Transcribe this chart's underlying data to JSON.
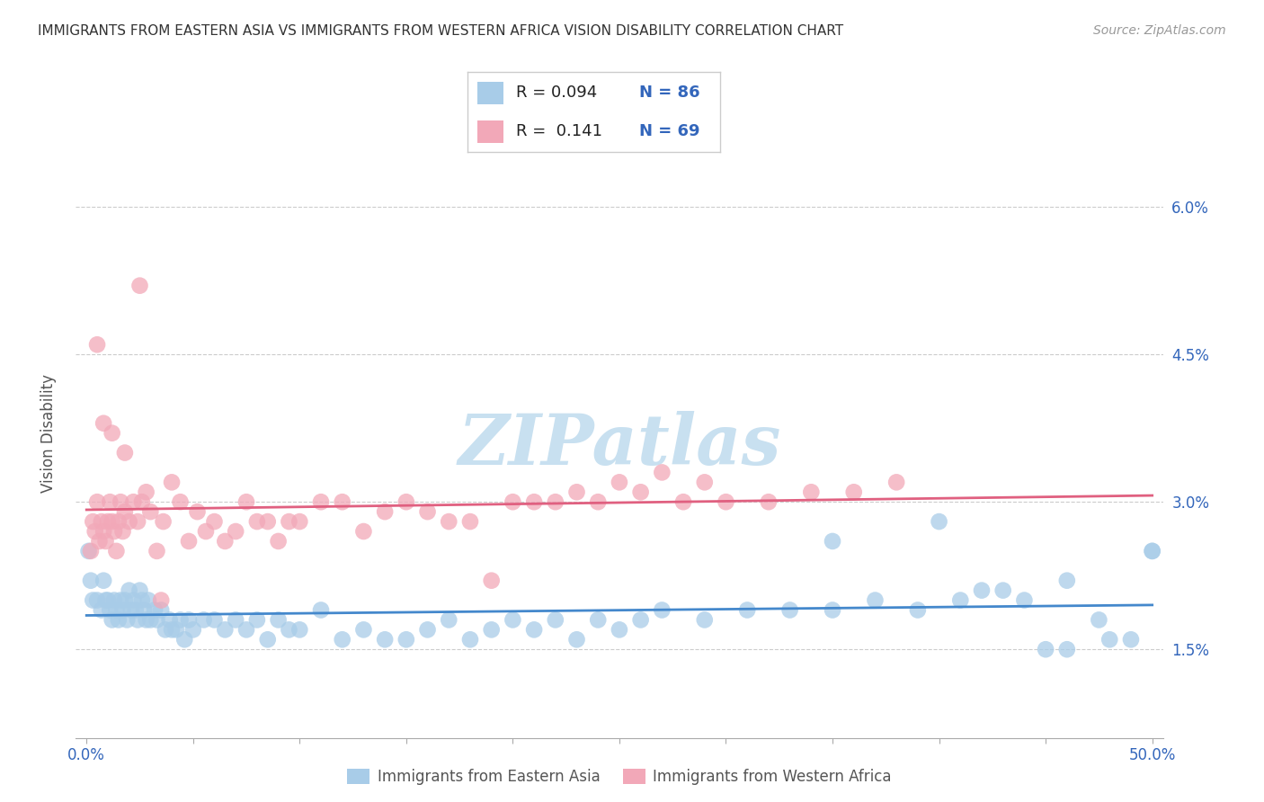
{
  "title": "IMMIGRANTS FROM EASTERN ASIA VS IMMIGRANTS FROM WESTERN AFRICA VISION DISABILITY CORRELATION CHART",
  "source": "Source: ZipAtlas.com",
  "ylabel": "Vision Disability",
  "ytick_vals": [
    0.015,
    0.03,
    0.045,
    0.06
  ],
  "ytick_labels": [
    "1.5%",
    "3.0%",
    "4.5%",
    "6.0%"
  ],
  "xlim": [
    -0.005,
    0.505
  ],
  "ylim": [
    0.006,
    0.068
  ],
  "xtick_positions": [
    0.0,
    0.05,
    0.1,
    0.15,
    0.2,
    0.25,
    0.3,
    0.35,
    0.4,
    0.45,
    0.5
  ],
  "legend_labels": [
    "Immigrants from Eastern Asia",
    "Immigrants from Western Africa"
  ],
  "legend_R_blue": "R = 0.094",
  "legend_N_blue": "N = 86",
  "legend_R_pink": "R =  0.141",
  "legend_N_pink": "N = 69",
  "blue_color": "#A8CCE8",
  "pink_color": "#F2A8B8",
  "blue_line_color": "#4488CC",
  "pink_line_color": "#E06080",
  "watermark_color": "#C8E0F0",
  "blue_scatter_x": [
    0.001,
    0.002,
    0.003,
    0.005,
    0.007,
    0.008,
    0.009,
    0.01,
    0.011,
    0.012,
    0.013,
    0.014,
    0.015,
    0.016,
    0.017,
    0.018,
    0.019,
    0.02,
    0.021,
    0.022,
    0.023,
    0.024,
    0.025,
    0.026,
    0.027,
    0.028,
    0.029,
    0.03,
    0.032,
    0.033,
    0.035,
    0.037,
    0.039,
    0.04,
    0.042,
    0.044,
    0.046,
    0.048,
    0.05,
    0.055,
    0.06,
    0.065,
    0.07,
    0.075,
    0.08,
    0.085,
    0.09,
    0.095,
    0.1,
    0.11,
    0.12,
    0.13,
    0.14,
    0.15,
    0.16,
    0.17,
    0.18,
    0.19,
    0.2,
    0.21,
    0.22,
    0.23,
    0.24,
    0.25,
    0.26,
    0.27,
    0.29,
    0.31,
    0.33,
    0.35,
    0.37,
    0.39,
    0.41,
    0.43,
    0.45,
    0.46,
    0.475,
    0.49,
    0.5,
    0.35,
    0.4,
    0.42,
    0.44,
    0.46,
    0.48,
    0.5
  ],
  "blue_scatter_y": [
    0.025,
    0.022,
    0.02,
    0.02,
    0.019,
    0.022,
    0.02,
    0.02,
    0.019,
    0.018,
    0.02,
    0.019,
    0.018,
    0.02,
    0.019,
    0.02,
    0.018,
    0.021,
    0.019,
    0.02,
    0.019,
    0.018,
    0.021,
    0.02,
    0.019,
    0.018,
    0.02,
    0.018,
    0.019,
    0.018,
    0.019,
    0.017,
    0.018,
    0.017,
    0.017,
    0.018,
    0.016,
    0.018,
    0.017,
    0.018,
    0.018,
    0.017,
    0.018,
    0.017,
    0.018,
    0.016,
    0.018,
    0.017,
    0.017,
    0.019,
    0.016,
    0.017,
    0.016,
    0.016,
    0.017,
    0.018,
    0.016,
    0.017,
    0.018,
    0.017,
    0.018,
    0.016,
    0.018,
    0.017,
    0.018,
    0.019,
    0.018,
    0.019,
    0.019,
    0.019,
    0.02,
    0.019,
    0.02,
    0.021,
    0.015,
    0.022,
    0.018,
    0.016,
    0.025,
    0.026,
    0.028,
    0.021,
    0.02,
    0.015,
    0.016,
    0.025
  ],
  "pink_scatter_x": [
    0.002,
    0.003,
    0.004,
    0.005,
    0.006,
    0.007,
    0.008,
    0.009,
    0.01,
    0.011,
    0.012,
    0.013,
    0.014,
    0.015,
    0.016,
    0.017,
    0.018,
    0.02,
    0.022,
    0.024,
    0.026,
    0.028,
    0.03,
    0.033,
    0.036,
    0.04,
    0.044,
    0.048,
    0.052,
    0.056,
    0.06,
    0.065,
    0.07,
    0.075,
    0.08,
    0.085,
    0.09,
    0.095,
    0.1,
    0.11,
    0.12,
    0.13,
    0.14,
    0.15,
    0.16,
    0.17,
    0.18,
    0.19,
    0.2,
    0.21,
    0.22,
    0.23,
    0.24,
    0.25,
    0.26,
    0.27,
    0.28,
    0.29,
    0.3,
    0.32,
    0.34,
    0.36,
    0.38,
    0.005,
    0.008,
    0.012,
    0.018,
    0.025,
    0.035
  ],
  "pink_scatter_y": [
    0.025,
    0.028,
    0.027,
    0.03,
    0.026,
    0.028,
    0.027,
    0.026,
    0.028,
    0.03,
    0.028,
    0.027,
    0.025,
    0.028,
    0.03,
    0.027,
    0.029,
    0.028,
    0.03,
    0.028,
    0.03,
    0.031,
    0.029,
    0.025,
    0.028,
    0.032,
    0.03,
    0.026,
    0.029,
    0.027,
    0.028,
    0.026,
    0.027,
    0.03,
    0.028,
    0.028,
    0.026,
    0.028,
    0.028,
    0.03,
    0.03,
    0.027,
    0.029,
    0.03,
    0.029,
    0.028,
    0.028,
    0.022,
    0.03,
    0.03,
    0.03,
    0.031,
    0.03,
    0.032,
    0.031,
    0.033,
    0.03,
    0.032,
    0.03,
    0.03,
    0.031,
    0.031,
    0.032,
    0.046,
    0.038,
    0.037,
    0.035,
    0.052,
    0.02
  ]
}
